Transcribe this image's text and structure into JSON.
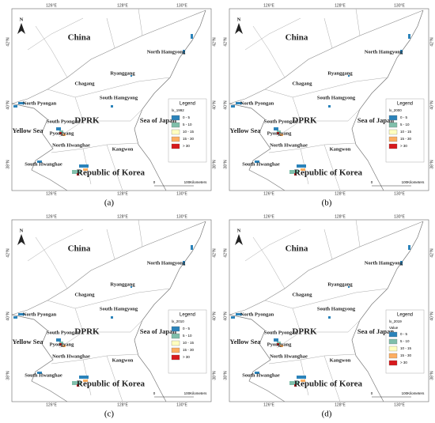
{
  "places": [
    "China",
    "North Hamgyong",
    "Ryanggang",
    "Chagang",
    "South Hamgyong",
    "North Pyongan",
    "DPRK",
    "South Pyongan",
    "Pyongyang",
    "Sea of Japan",
    "Yellow Sea",
    "North Hwanghae",
    "Kangwon",
    "South Hwanghae",
    "Republic of Korea"
  ],
  "lon_labels": [
    "126°E",
    "128°E",
    "130°E"
  ],
  "lat_labels": [
    "42°N",
    "40°N",
    "38°N"
  ],
  "north": "N",
  "scale": {
    "start": "0",
    "label": "100Kilometers"
  },
  "legend_title": "Legend",
  "classes": [
    {
      "label": "0 - 5",
      "color": "#2b83ba"
    },
    {
      "label": "5 - 10",
      "color": "#80bfab"
    },
    {
      "label": "10 - 15",
      "color": "#ffffbf"
    },
    {
      "label": "15 - 30",
      "color": "#fdae61"
    },
    {
      "label": "> 30",
      "color": "#d7191c"
    }
  ],
  "panels": [
    {
      "caption": "(a)",
      "layer": "lx_1992"
    },
    {
      "caption": "(b)",
      "layer": "lx_2000"
    },
    {
      "caption": "(c)",
      "layer": "lx_2010"
    },
    {
      "caption": "(d)",
      "layer": "lx_2019",
      "field": "Value"
    }
  ]
}
